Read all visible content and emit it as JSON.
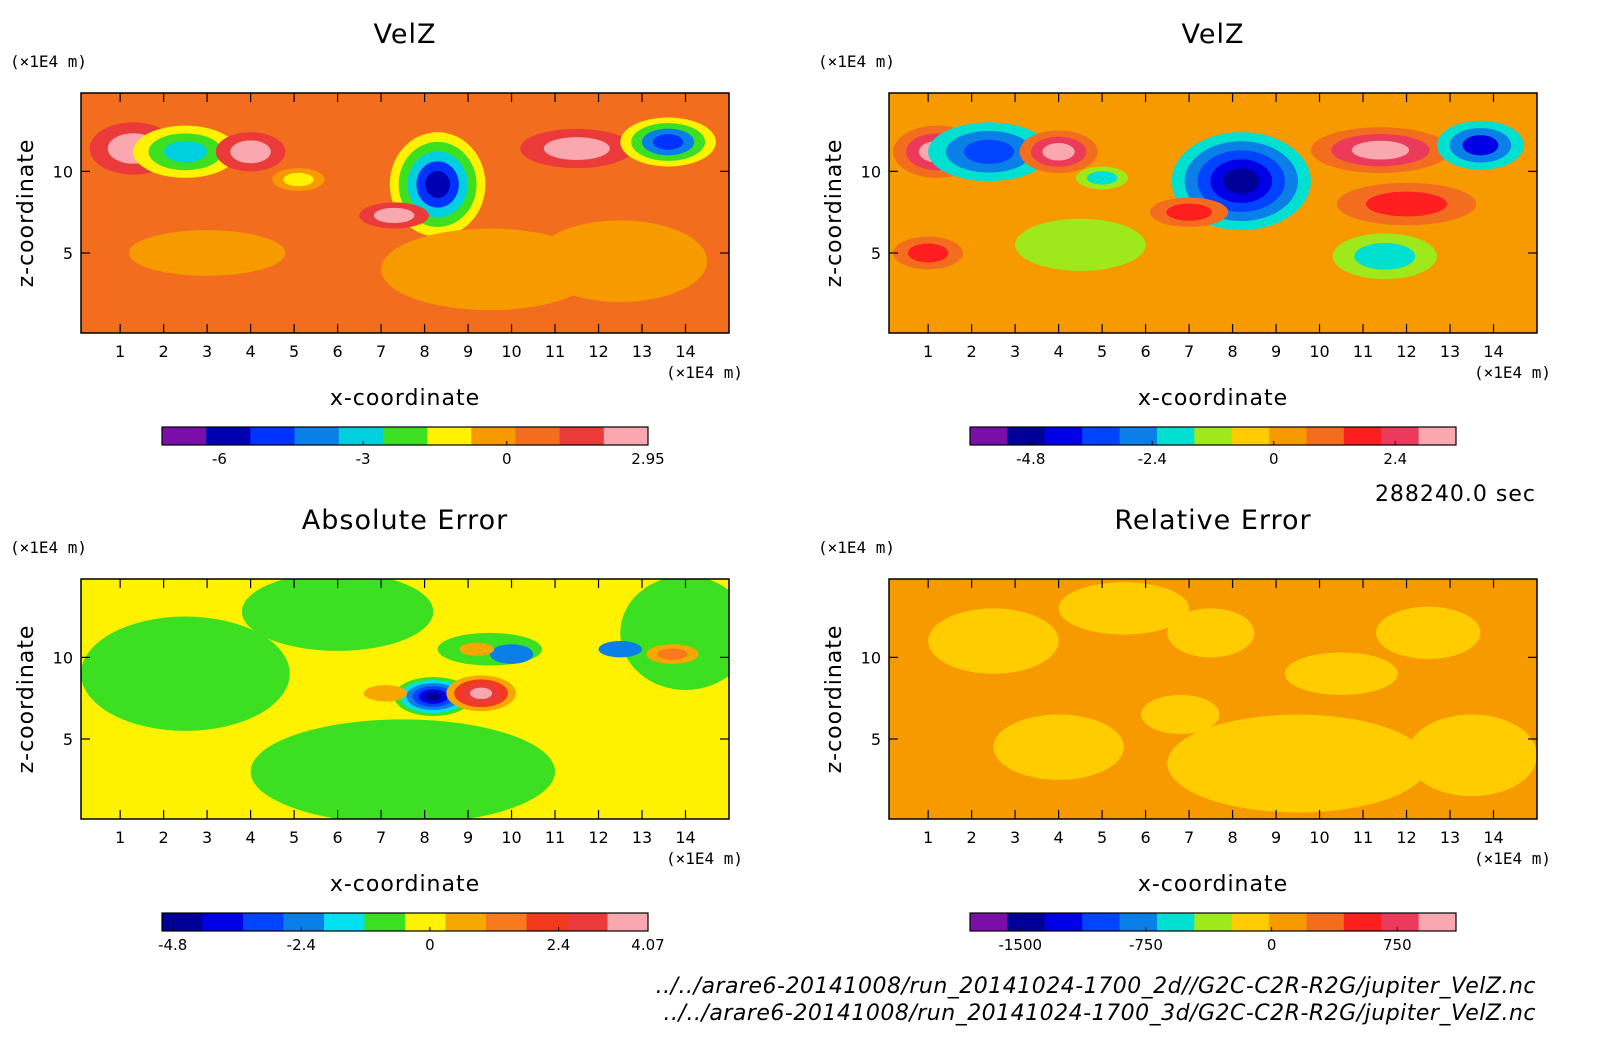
{
  "chart_data": [
    {
      "type": "heatmap",
      "title": "VelZ",
      "xlabel": "x-coordinate",
      "ylabel": "z-coordinate",
      "x_unit": "(×1E4 m)",
      "y_unit": "(×1E4 m)",
      "xlim": [
        0.1,
        15.0
      ],
      "ylim": [
        0.1,
        14.8
      ],
      "x_ticks": [
        1,
        2,
        3,
        4,
        5,
        6,
        7,
        8,
        9,
        10,
        11,
        12,
        13,
        14
      ],
      "y_ticks": [
        5,
        10
      ],
      "background_color": "#f26d1e",
      "colorbar": {
        "colors": [
          "#7a0ea8",
          "#0000b3",
          "#0033ff",
          "#0b7fe8",
          "#00cfe0",
          "#3ce021",
          "#fff200",
          "#f79a00",
          "#f26d1e",
          "#eb3a3a",
          "#f8a8ae"
        ],
        "tick_labels": [
          "-6",
          "-3",
          "0",
          "2.95"
        ],
        "tick_values": [
          -6,
          -3,
          0,
          2.95
        ],
        "range": [
          -7.2,
          2.95
        ]
      },
      "features": [
        {
          "x": 1.3,
          "z": 11.4,
          "rx": 1.0,
          "rz": 1.6,
          "levels": [
            "#eb3a3a",
            "#f8a8ae"
          ]
        },
        {
          "x": 2.5,
          "z": 11.2,
          "rx": 1.2,
          "rz": 1.6,
          "levels": [
            "#fff200",
            "#3ce021",
            "#00cfe0"
          ]
        },
        {
          "x": 4.0,
          "z": 11.2,
          "rx": 0.8,
          "rz": 1.2,
          "levels": [
            "#eb3a3a",
            "#f8a8ae"
          ]
        },
        {
          "x": 8.3,
          "z": 9.2,
          "rx": 1.1,
          "rz": 3.2,
          "levels": [
            "#fff200",
            "#3ce021",
            "#00cfe0",
            "#0033ff",
            "#0000b3"
          ]
        },
        {
          "x": 7.3,
          "z": 7.3,
          "rx": 0.8,
          "rz": 0.8,
          "levels": [
            "#eb3a3a",
            "#f8a8ae"
          ]
        },
        {
          "x": 11.5,
          "z": 11.4,
          "rx": 1.3,
          "rz": 1.2,
          "levels": [
            "#eb3a3a",
            "#f8a8ae"
          ]
        },
        {
          "x": 13.6,
          "z": 11.8,
          "rx": 1.1,
          "rz": 1.5,
          "levels": [
            "#fff200",
            "#3ce021",
            "#0b7fe8",
            "#0033ff"
          ]
        },
        {
          "x": 5.1,
          "z": 9.5,
          "rx": 0.6,
          "rz": 0.7,
          "levels": [
            "#f79a00",
            "#fff200"
          ]
        },
        {
          "x": 9.5,
          "z": 4.0,
          "rx": 2.5,
          "rz": 2.5,
          "levels": [
            "#f79a00"
          ]
        },
        {
          "x": 12.5,
          "z": 4.5,
          "rx": 2.0,
          "rz": 2.5,
          "levels": [
            "#f79a00"
          ]
        },
        {
          "x": 3.0,
          "z": 5.0,
          "rx": 1.8,
          "rz": 1.4,
          "levels": [
            "#f79a00"
          ]
        }
      ]
    },
    {
      "type": "heatmap",
      "title": "VelZ",
      "xlabel": "x-coordinate",
      "ylabel": "z-coordinate",
      "x_unit": "(×1E4 m)",
      "y_unit": "(×1E4 m)",
      "xlim": [
        0.1,
        15.0
      ],
      "ylim": [
        0.1,
        14.8
      ],
      "x_ticks": [
        1,
        2,
        3,
        4,
        5,
        6,
        7,
        8,
        9,
        10,
        11,
        12,
        13,
        14
      ],
      "y_ticks": [
        5,
        10
      ],
      "background_color": "#f79a00",
      "colorbar": {
        "colors": [
          "#7a0ea8",
          "#000099",
          "#0000e6",
          "#0044ff",
          "#0b7fe8",
          "#00e0d0",
          "#9fe81b",
          "#ffcc00",
          "#f79a00",
          "#f26d1e",
          "#ff1f1f",
          "#eb3a5a",
          "#f8a8ae"
        ],
        "tick_labels": [
          "-4.8",
          "-2.4",
          "0",
          "2.4"
        ],
        "tick_values": [
          -4.8,
          -2.4,
          0,
          2.4
        ],
        "range": [
          -6.0,
          3.6
        ]
      },
      "features": [
        {
          "x": 1.2,
          "z": 11.2,
          "rx": 1.0,
          "rz": 1.6,
          "levels": [
            "#f26d1e",
            "#eb3a5a",
            "#f8a8ae"
          ]
        },
        {
          "x": 2.4,
          "z": 11.2,
          "rx": 1.4,
          "rz": 1.8,
          "levels": [
            "#00e0d0",
            "#0b7fe8",
            "#0044ff"
          ]
        },
        {
          "x": 4.0,
          "z": 11.2,
          "rx": 0.9,
          "rz": 1.3,
          "levels": [
            "#f26d1e",
            "#eb3a5a",
            "#f8a8ae"
          ]
        },
        {
          "x": 5.0,
          "z": 9.6,
          "rx": 0.6,
          "rz": 0.7,
          "levels": [
            "#9fe81b",
            "#00e0d0"
          ]
        },
        {
          "x": 8.2,
          "z": 9.4,
          "rx": 1.6,
          "rz": 3.0,
          "levels": [
            "#00e0d0",
            "#0b7fe8",
            "#0044ff",
            "#0000e6",
            "#000099"
          ]
        },
        {
          "x": 7.0,
          "z": 7.5,
          "rx": 0.9,
          "rz": 0.9,
          "levels": [
            "#f26d1e",
            "#ff1f1f"
          ]
        },
        {
          "x": 11.4,
          "z": 11.3,
          "rx": 1.6,
          "rz": 1.4,
          "levels": [
            "#f26d1e",
            "#eb3a5a",
            "#f8a8ae"
          ]
        },
        {
          "x": 13.7,
          "z": 11.6,
          "rx": 1.0,
          "rz": 1.5,
          "levels": [
            "#00e0d0",
            "#0b7fe8",
            "#0000e6"
          ]
        },
        {
          "x": 12.0,
          "z": 8.0,
          "rx": 1.6,
          "rz": 1.3,
          "levels": [
            "#f26d1e",
            "#ff1f1f"
          ]
        },
        {
          "x": 4.5,
          "z": 5.5,
          "rx": 1.5,
          "rz": 1.6,
          "levels": [
            "#9fe81b"
          ]
        },
        {
          "x": 11.5,
          "z": 4.8,
          "rx": 1.2,
          "rz": 1.4,
          "levels": [
            "#9fe81b",
            "#00e0d0"
          ]
        },
        {
          "x": 1.0,
          "z": 5.0,
          "rx": 0.8,
          "rz": 1.0,
          "levels": [
            "#f26d1e",
            "#ff1f1f"
          ]
        }
      ]
    },
    {
      "type": "heatmap",
      "title": "Absolute Error",
      "xlabel": "x-coordinate",
      "ylabel": "z-coordinate",
      "x_unit": "(×1E4 m)",
      "y_unit": "(×1E4 m)",
      "xlim": [
        0.1,
        15.0
      ],
      "ylim": [
        0.1,
        14.8
      ],
      "x_ticks": [
        1,
        2,
        3,
        4,
        5,
        6,
        7,
        8,
        9,
        10,
        11,
        12,
        13,
        14
      ],
      "y_ticks": [
        5,
        10
      ],
      "background_color": "#fff200",
      "colorbar": {
        "colors": [
          "#000099",
          "#0000e6",
          "#0044ff",
          "#0b7fe8",
          "#00e0f0",
          "#3ce021",
          "#fff200",
          "#f7a800",
          "#f77a1e",
          "#f23a1e",
          "#eb3a3a",
          "#f8a8ae"
        ],
        "tick_labels": [
          "-4.8",
          "-2.4",
          "0",
          "2.4",
          "4.07"
        ],
        "tick_values": [
          -4.8,
          -2.4,
          0,
          2.4,
          4.07
        ],
        "range": [
          -5.0,
          4.07
        ]
      },
      "features": [
        {
          "x": 2.5,
          "z": 9.0,
          "rx": 2.4,
          "rz": 3.5,
          "levels": [
            "#3ce021"
          ]
        },
        {
          "x": 6.0,
          "z": 12.8,
          "rx": 2.2,
          "rz": 2.4,
          "levels": [
            "#3ce021"
          ]
        },
        {
          "x": 7.5,
          "z": 3.0,
          "rx": 3.5,
          "rz": 3.2,
          "levels": [
            "#3ce021"
          ]
        },
        {
          "x": 14.0,
          "z": 11.5,
          "rx": 1.5,
          "rz": 3.5,
          "levels": [
            "#3ce021"
          ]
        },
        {
          "x": 9.5,
          "z": 10.5,
          "rx": 1.2,
          "rz": 1.0,
          "levels": [
            "#3ce021"
          ]
        },
        {
          "x": 8.2,
          "z": 7.6,
          "rx": 0.9,
          "rz": 1.2,
          "levels": [
            "#3ce021",
            "#00e0f0",
            "#0b7fe8",
            "#0044ff",
            "#0000e6",
            "#000099"
          ]
        },
        {
          "x": 9.3,
          "z": 7.8,
          "rx": 0.8,
          "rz": 1.1,
          "levels": [
            "#f7a800",
            "#f23a1e",
            "#eb3a3a",
            "#f8a8ae"
          ]
        },
        {
          "x": 10.0,
          "z": 10.2,
          "rx": 0.5,
          "rz": 0.6,
          "levels": [
            "#0b7fe8"
          ]
        },
        {
          "x": 12.5,
          "z": 10.5,
          "rx": 0.5,
          "rz": 0.5,
          "levels": [
            "#0b7fe8"
          ]
        },
        {
          "x": 13.7,
          "z": 10.2,
          "rx": 0.6,
          "rz": 0.6,
          "levels": [
            "#f7a800",
            "#f77a1e"
          ]
        },
        {
          "x": 7.1,
          "z": 7.8,
          "rx": 0.5,
          "rz": 0.5,
          "levels": [
            "#f7a800"
          ]
        },
        {
          "x": 9.2,
          "z": 10.5,
          "rx": 0.4,
          "rz": 0.4,
          "levels": [
            "#f7a800"
          ]
        }
      ]
    },
    {
      "type": "heatmap",
      "title": "Relative Error",
      "xlabel": "x-coordinate",
      "ylabel": "z-coordinate",
      "x_unit": "(×1E4 m)",
      "y_unit": "(×1E4 m)",
      "xlim": [
        0.1,
        15.0
      ],
      "ylim": [
        0.1,
        14.8
      ],
      "x_ticks": [
        1,
        2,
        3,
        4,
        5,
        6,
        7,
        8,
        9,
        10,
        11,
        12,
        13,
        14
      ],
      "y_ticks": [
        5,
        10
      ],
      "background_color": "#f79a00",
      "colorbar": {
        "colors": [
          "#7a0ea8",
          "#000099",
          "#0000e6",
          "#0044ff",
          "#0b7fe8",
          "#00e0d0",
          "#9fe81b",
          "#ffcc00",
          "#f79a00",
          "#f26d1e",
          "#ff1f1f",
          "#eb3a5a",
          "#f8a8ae"
        ],
        "tick_labels": [
          "-1500",
          "-750",
          "0",
          "750"
        ],
        "tick_values": [
          -1500,
          -750,
          0,
          750
        ],
        "range": [
          -1800,
          1100
        ]
      },
      "features": [
        {
          "x": 2.5,
          "z": 11.0,
          "rx": 1.5,
          "rz": 2.0,
          "levels": [
            "#ffcc00"
          ]
        },
        {
          "x": 5.5,
          "z": 13.0,
          "rx": 1.5,
          "rz": 1.6,
          "levels": [
            "#ffcc00"
          ]
        },
        {
          "x": 7.5,
          "z": 11.5,
          "rx": 1.0,
          "rz": 1.5,
          "levels": [
            "#ffcc00"
          ]
        },
        {
          "x": 9.5,
          "z": 3.5,
          "rx": 3.0,
          "rz": 3.0,
          "levels": [
            "#ffcc00"
          ]
        },
        {
          "x": 4.0,
          "z": 4.5,
          "rx": 1.5,
          "rz": 2.0,
          "levels": [
            "#ffcc00"
          ]
        },
        {
          "x": 12.5,
          "z": 11.5,
          "rx": 1.2,
          "rz": 1.6,
          "levels": [
            "#ffcc00"
          ]
        },
        {
          "x": 13.5,
          "z": 4.0,
          "rx": 1.5,
          "rz": 2.5,
          "levels": [
            "#ffcc00"
          ]
        },
        {
          "x": 6.8,
          "z": 6.5,
          "rx": 0.9,
          "rz": 1.2,
          "levels": [
            "#ffcc00"
          ]
        },
        {
          "x": 10.5,
          "z": 9.0,
          "rx": 1.3,
          "rz": 1.3,
          "levels": [
            "#ffcc00"
          ]
        }
      ]
    }
  ],
  "time_label": "288240.0 sec",
  "footer_lines": [
    "../../arare6-20141008/run_20141024-1700_2d//G2C-C2R-R2G/jupiter_VelZ.nc",
    "../../arare6-20141008/run_20141024-1700_3d/G2C-C2R-R2G/jupiter_VelZ.nc"
  ]
}
